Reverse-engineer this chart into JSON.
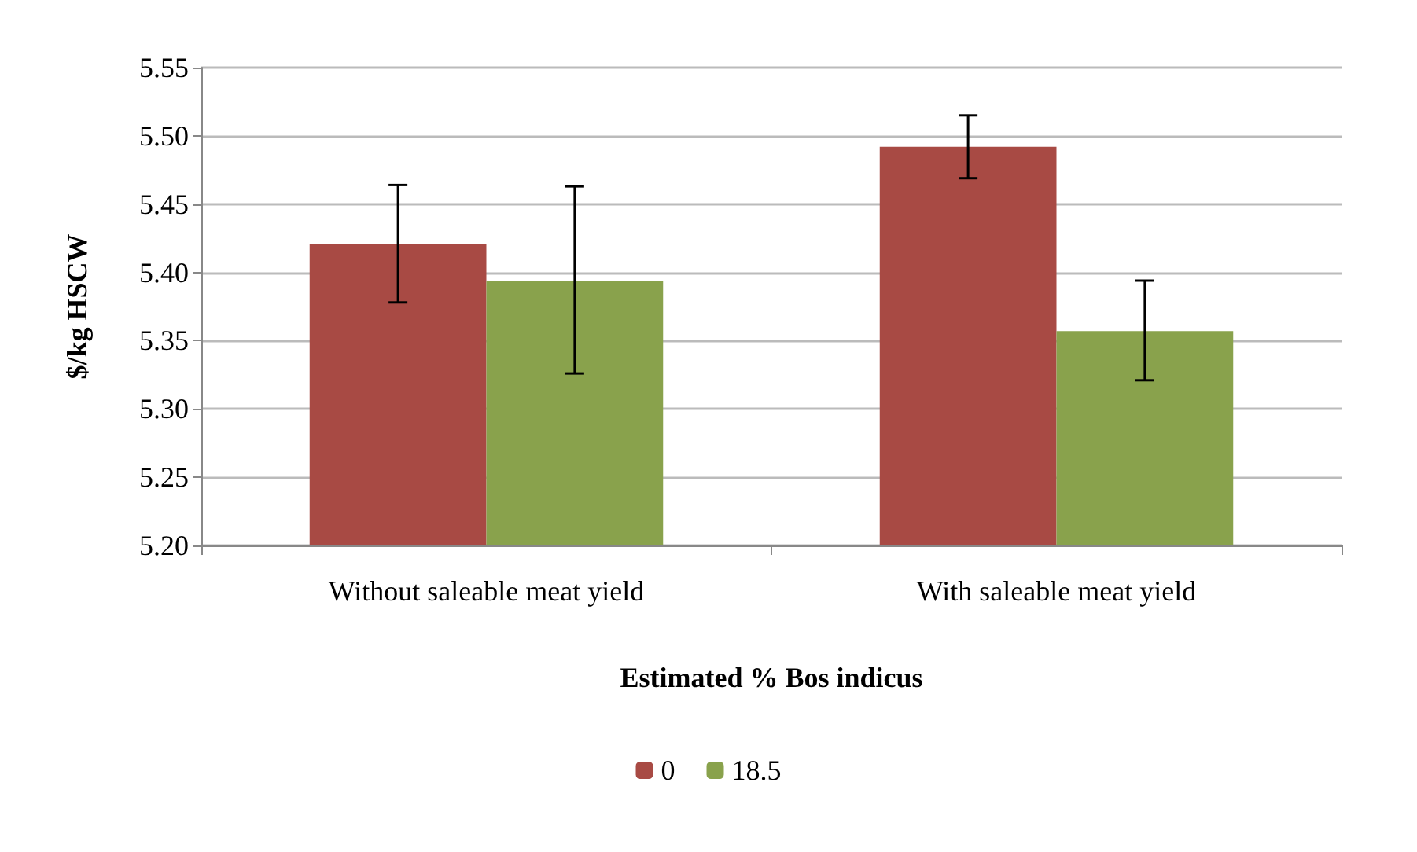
{
  "chart_data": {
    "type": "bar",
    "categories": [
      "Without saleable meat yield",
      "With saleable meat yield"
    ],
    "xlabel": "Estimated % Bos indicus",
    "ylabel": "$/kg HSCW",
    "series": [
      {
        "name": "0",
        "color": "#a84a44",
        "values": [
          5.421,
          5.492
        ],
        "errors": [
          [
            5.378,
            5.464
          ],
          [
            5.469,
            5.515
          ]
        ]
      },
      {
        "name": "18.5",
        "color": "#89a24c",
        "values": [
          5.394,
          5.357
        ],
        "errors": [
          [
            5.326,
            5.463
          ],
          [
            5.321,
            5.394
          ]
        ]
      }
    ],
    "ylim": [
      5.2,
      5.55
    ],
    "yticks": [
      {
        "value": 5.2,
        "label": "5.20"
      },
      5.25,
      {
        "value": 5.3,
        "label": "5.30"
      },
      5.35,
      {
        "value": 5.4,
        "label": "5.40"
      },
      5.45,
      {
        "value": 5.5,
        "label": "5.50"
      },
      5.55
    ],
    "grid": "y",
    "legend": "bottom"
  }
}
